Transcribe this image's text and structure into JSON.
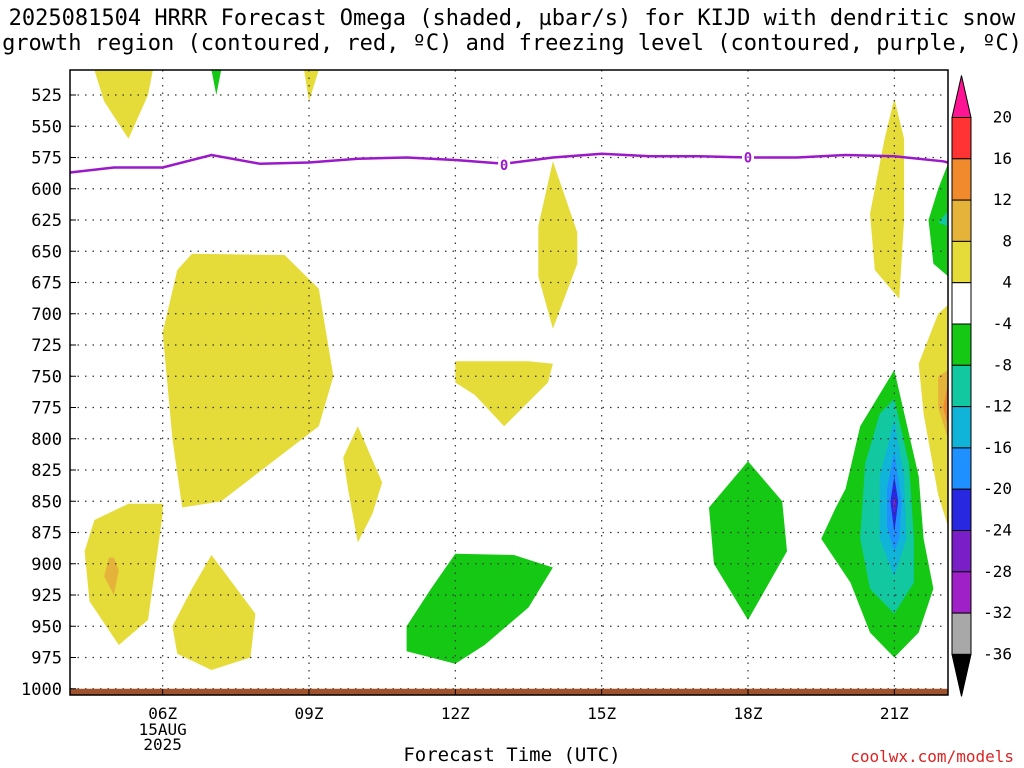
{
  "title_line1": "2025081504 HRRR Forecast Omega (shaded, µbar/s) for KIJD with dendritic snow",
  "title_line2": "growth region (contoured, red, ºC) and freezing level (contoured, purple, ºC)",
  "credit": "coolwx.com/models",
  "chart_data": {
    "type": "heatmap",
    "xlabel": "Forecast Time (UTC)",
    "ylabel": "",
    "x_ticks": [
      {
        "hour": 6,
        "label": "06Z",
        "sub": [
          "15AUG",
          "2025"
        ]
      },
      {
        "hour": 9,
        "label": "09Z"
      },
      {
        "hour": 12,
        "label": "12Z"
      },
      {
        "hour": 15,
        "label": "15Z"
      },
      {
        "hour": 18,
        "label": "18Z"
      },
      {
        "hour": 21,
        "label": "21Z"
      }
    ],
    "xlim": [
      4.1,
      22.1
    ],
    "y_ticks": [
      525,
      550,
      575,
      600,
      625,
      650,
      675,
      700,
      725,
      750,
      775,
      800,
      825,
      850,
      875,
      900,
      925,
      950,
      975,
      1000
    ],
    "ylim": [
      505,
      1005
    ],
    "y_reversed": true,
    "colorbar": {
      "labels": [
        "20",
        "16",
        "12",
        "8",
        "4",
        "-4",
        "-8",
        "-12",
        "-16",
        "-20",
        "-24",
        "-28",
        "-32",
        "-36"
      ],
      "colors": [
        "#ff1493",
        "#ff3333",
        "#f08a2c",
        "#e6b33a",
        "#e5dc3a",
        "#ffffff",
        "#14c814",
        "#12c8a0",
        "#10b4d8",
        "#1e90ff",
        "#2828e0",
        "#7a1fc8",
        "#a020c8",
        "#a8a8a8",
        "#000000"
      ]
    },
    "freezing_level": {
      "color": "#9b19c8",
      "label": "0",
      "label_points": [
        [
          13.0,
          581
        ],
        [
          18.0,
          575
        ]
      ],
      "points": [
        [
          4.1,
          587
        ],
        [
          5.0,
          583
        ],
        [
          6.0,
          583
        ],
        [
          7.0,
          573
        ],
        [
          8.0,
          580
        ],
        [
          9.0,
          579
        ],
        [
          10.0,
          576
        ],
        [
          11.0,
          575
        ],
        [
          12.0,
          577
        ],
        [
          13.0,
          580
        ],
        [
          14.0,
          575
        ],
        [
          15.0,
          572
        ],
        [
          16.0,
          574
        ],
        [
          17.0,
          574
        ],
        [
          18.0,
          575
        ],
        [
          19.0,
          575
        ],
        [
          20.0,
          573
        ],
        [
          21.0,
          574
        ],
        [
          22.0,
          578
        ],
        [
          22.1,
          579
        ]
      ]
    },
    "surface": {
      "color": "#a0522d",
      "pressure": 1000
    },
    "regions": [
      {
        "level": "4",
        "color": "#e5dc3a",
        "points": [
          [
            4.6,
            505
          ],
          [
            5.8,
            505
          ],
          [
            5.7,
            525
          ],
          [
            5.3,
            560
          ],
          [
            4.8,
            530
          ]
        ]
      },
      {
        "level": "4",
        "color": "#e5dc3a",
        "points": [
          [
            8.9,
            505
          ],
          [
            9.2,
            505
          ],
          [
            9.0,
            530
          ]
        ]
      },
      {
        "level": "-4",
        "color": "#14c814",
        "points": [
          [
            7.0,
            505
          ],
          [
            7.2,
            505
          ],
          [
            7.1,
            525
          ]
        ]
      },
      {
        "level": "4",
        "color": "#e5dc3a",
        "points": [
          [
            6.6,
            652
          ],
          [
            8.5,
            653
          ],
          [
            9.2,
            680
          ],
          [
            9.5,
            750
          ],
          [
            9.2,
            790
          ],
          [
            7.2,
            850
          ],
          [
            6.4,
            855
          ],
          [
            6.2,
            800
          ],
          [
            6.0,
            715
          ],
          [
            6.3,
            665
          ]
        ]
      },
      {
        "level": "4",
        "color": "#e5dc3a",
        "points": [
          [
            5.3,
            852
          ],
          [
            6.0,
            852
          ],
          [
            6.0,
            860
          ],
          [
            5.7,
            945
          ],
          [
            5.1,
            965
          ],
          [
            4.5,
            930
          ],
          [
            4.4,
            890
          ],
          [
            4.6,
            865
          ]
        ]
      },
      {
        "level": "8",
        "color": "#e6b33a",
        "points": [
          [
            4.9,
            895
          ],
          [
            5.0,
            895
          ],
          [
            5.1,
            905
          ],
          [
            5.0,
            925
          ],
          [
            4.8,
            910
          ]
        ]
      },
      {
        "level": "4",
        "color": "#e5dc3a",
        "points": [
          [
            7.0,
            893
          ],
          [
            7.9,
            940
          ],
          [
            7.8,
            975
          ],
          [
            7.0,
            985
          ],
          [
            6.3,
            972
          ],
          [
            6.2,
            950
          ],
          [
            6.6,
            920
          ]
        ]
      },
      {
        "level": "4",
        "color": "#e5dc3a",
        "points": [
          [
            10.0,
            790
          ],
          [
            10.5,
            835
          ],
          [
            10.3,
            860
          ],
          [
            10.0,
            883
          ],
          [
            9.8,
            840
          ],
          [
            9.7,
            815
          ]
        ]
      },
      {
        "level": "4",
        "color": "#e5dc3a",
        "points": [
          [
            12.0,
            738
          ],
          [
            13.5,
            738
          ],
          [
            14.0,
            740
          ],
          [
            13.9,
            755
          ],
          [
            13.0,
            790
          ],
          [
            12.4,
            765
          ],
          [
            12.0,
            755
          ]
        ]
      },
      {
        "level": "4",
        "color": "#e5dc3a",
        "points": [
          [
            14.0,
            578
          ],
          [
            14.5,
            635
          ],
          [
            14.5,
            660
          ],
          [
            14.0,
            712
          ],
          [
            13.7,
            670
          ],
          [
            13.7,
            630
          ]
        ]
      },
      {
        "level": "-4",
        "color": "#14c814",
        "points": [
          [
            12.0,
            892
          ],
          [
            13.2,
            893
          ],
          [
            14.0,
            903
          ],
          [
            13.5,
            935
          ],
          [
            12.6,
            965
          ],
          [
            12.0,
            980
          ],
          [
            11.0,
            970
          ],
          [
            11.0,
            950
          ],
          [
            11.5,
            920
          ]
        ]
      },
      {
        "level": "-4",
        "color": "#14c814",
        "points": [
          [
            18.0,
            818
          ],
          [
            18.7,
            850
          ],
          [
            18.8,
            890
          ],
          [
            18.0,
            945
          ],
          [
            17.3,
            900
          ],
          [
            17.2,
            855
          ]
        ]
      },
      {
        "level": "4",
        "color": "#e5dc3a",
        "points": [
          [
            21.0,
            528
          ],
          [
            21.2,
            560
          ],
          [
            21.2,
            625
          ],
          [
            21.1,
            688
          ],
          [
            20.6,
            665
          ],
          [
            20.5,
            620
          ],
          [
            20.8,
            560
          ]
        ]
      },
      {
        "level": "-4",
        "color": "#14c814",
        "points": [
          [
            22.1,
            580
          ],
          [
            22.1,
            670
          ],
          [
            21.8,
            660
          ],
          [
            21.7,
            625
          ],
          [
            21.9,
            600
          ]
        ]
      },
      {
        "level": "-8",
        "color": "#12c8a0",
        "points": [
          [
            22.1,
            630
          ],
          [
            21.9,
            627
          ],
          [
            22.1,
            618
          ]
        ]
      },
      {
        "level": "4",
        "color": "#e5dc3a",
        "points": [
          [
            21.9,
            700
          ],
          [
            22.1,
            693
          ],
          [
            22.1,
            870
          ],
          [
            21.9,
            845
          ],
          [
            21.6,
            780
          ],
          [
            21.5,
            740
          ]
        ]
      },
      {
        "level": "8",
        "color": "#e6b33a",
        "points": [
          [
            22.1,
            745
          ],
          [
            22.1,
            800
          ],
          [
            21.9,
            775
          ],
          [
            21.9,
            750
          ]
        ]
      },
      {
        "level": "12",
        "color": "#f08a2c",
        "points": [
          [
            22.1,
            755
          ],
          [
            22.1,
            790
          ],
          [
            22.0,
            775
          ]
        ]
      },
      {
        "level": "-4",
        "color": "#14c814",
        "points": [
          [
            21.0,
            745
          ],
          [
            21.5,
            830
          ],
          [
            21.6,
            880
          ],
          [
            21.8,
            920
          ],
          [
            21.5,
            955
          ],
          [
            21.0,
            975
          ],
          [
            20.5,
            955
          ],
          [
            20.1,
            915
          ],
          [
            19.5,
            880
          ],
          [
            19.8,
            855
          ],
          [
            20.0,
            840
          ],
          [
            20.3,
            790
          ]
        ]
      },
      {
        "level": "-8",
        "color": "#12c8a0",
        "points": [
          [
            21.0,
            768
          ],
          [
            21.3,
            820
          ],
          [
            21.4,
            880
          ],
          [
            21.4,
            915
          ],
          [
            21.0,
            940
          ],
          [
            20.5,
            920
          ],
          [
            20.3,
            880
          ],
          [
            20.4,
            820
          ],
          [
            20.7,
            780
          ]
        ]
      },
      {
        "level": "-12",
        "color": "#10b4d8",
        "points": [
          [
            21.0,
            785
          ],
          [
            21.2,
            830
          ],
          [
            21.25,
            880
          ],
          [
            21.0,
            910
          ],
          [
            20.7,
            880
          ],
          [
            20.7,
            830
          ]
        ]
      },
      {
        "level": "-16",
        "color": "#1e90ff",
        "points": [
          [
            21.0,
            810
          ],
          [
            21.15,
            850
          ],
          [
            21.1,
            880
          ],
          [
            21.0,
            890
          ],
          [
            20.85,
            870
          ],
          [
            20.85,
            840
          ]
        ]
      },
      {
        "level": "-20",
        "color": "#2828e0",
        "points": [
          [
            21.0,
            830
          ],
          [
            21.08,
            850
          ],
          [
            21.0,
            875
          ],
          [
            20.92,
            850
          ]
        ]
      },
      {
        "level": "-24",
        "color": "#7a1fc8",
        "points": [
          [
            21.0,
            845
          ],
          [
            21.03,
            852
          ],
          [
            21.0,
            860
          ],
          [
            20.97,
            852
          ]
        ]
      }
    ]
  }
}
